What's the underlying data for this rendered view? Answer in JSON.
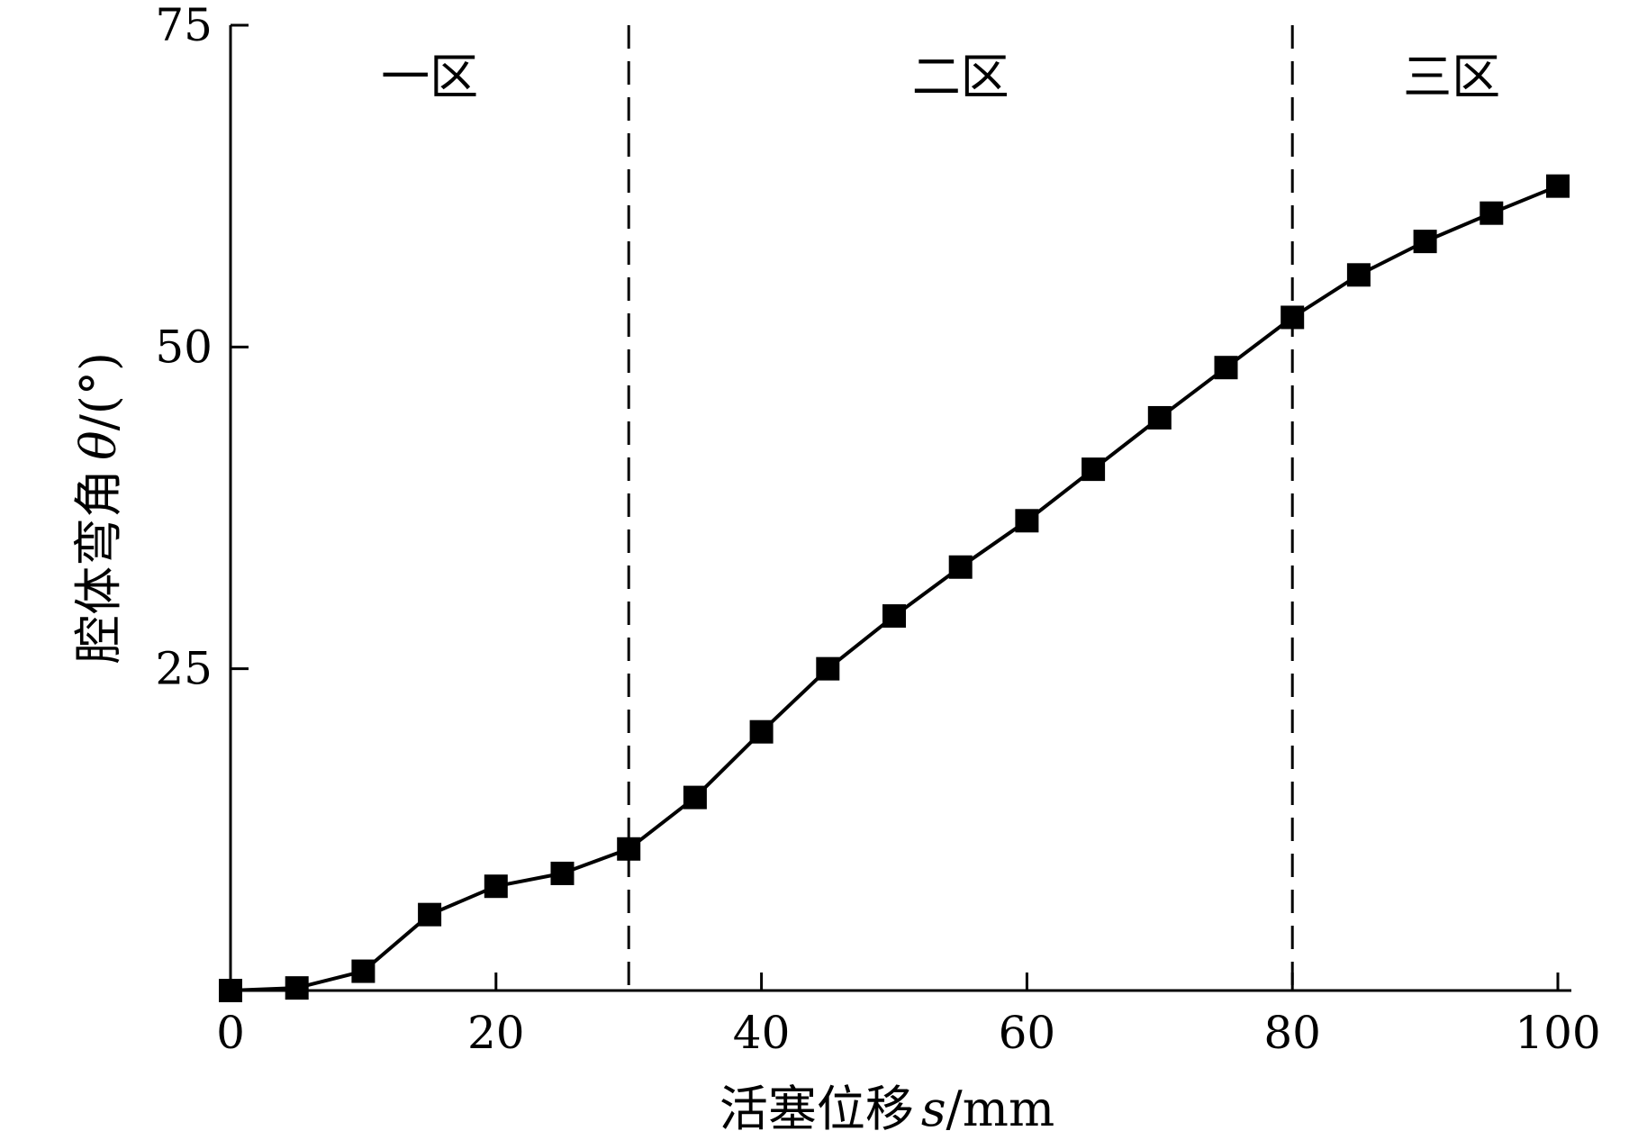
{
  "chart_data": {
    "type": "line",
    "title": "",
    "xlabel": "活塞位移",
    "xlabel_var": "s",
    "xlabel_unit": "/mm",
    "ylabel": "腔体弯角",
    "ylabel_var": "θ",
    "ylabel_unit": "/(°)",
    "xlim": [
      0,
      100
    ],
    "ylim": [
      0,
      75
    ],
    "xticks": [
      "0",
      "20",
      "40",
      "60",
      "80",
      "100"
    ],
    "yticks": [
      "25",
      "50",
      "75"
    ],
    "grid": false,
    "legend": "none",
    "series": [
      {
        "marker": "square",
        "color": "#000000",
        "x": [
          0,
          5,
          10,
          15,
          20,
          25,
          30,
          35,
          40,
          45,
          50,
          55,
          60,
          65,
          70,
          75,
          80,
          85,
          90,
          95,
          100
        ],
        "y": [
          0,
          0.2,
          1.5,
          5.9,
          8.1,
          9.1,
          11,
          15,
          20.1,
          25,
          29.1,
          32.9,
          36.5,
          40.5,
          44.5,
          48.4,
          52.3,
          55.6,
          58.2,
          60.4,
          62.5
        ]
      }
    ],
    "dividers": [
      30,
      80
    ],
    "zones": [
      {
        "label": "一区",
        "x": 15
      },
      {
        "label": "二区",
        "x": 55
      },
      {
        "label": "三区",
        "x": 92
      }
    ]
  }
}
